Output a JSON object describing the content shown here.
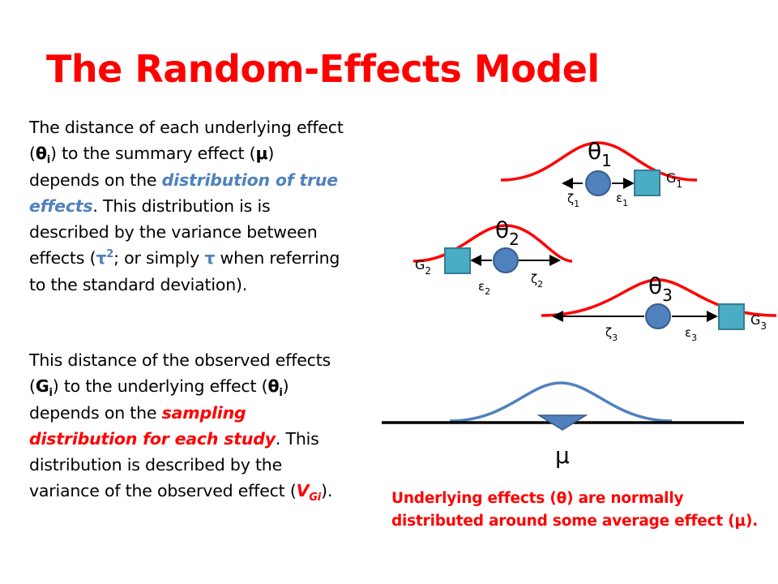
{
  "title": "The Random-Effects Model",
  "para1": {
    "t1": "The distance of each underlying effect (",
    "theta": "θ",
    "i1": "i",
    "t2": ") to the summary effect (",
    "mu": "μ",
    "t3": ") depends on the ",
    "em": "distribution of true effects",
    "t4": ". This distribution is is described by the variance between effects (",
    "tau2_base": "τ",
    "tau2_exp": "2",
    "t5": "; or simply ",
    "tau": "τ",
    "t6": " when referring to the standard deviation)."
  },
  "para2": {
    "t1": "This distance of the observed effects (",
    "g": "G",
    "i1": "i",
    "t2": ") to the underlying effect (",
    "theta": "θ",
    "i2": "i",
    "t3": ") depends on the ",
    "em": "sampling distribution for each study",
    "t4": ". This distribution is described by the variance of the observed effect (",
    "v": "V",
    "v_sub": "Gi",
    "t5": ")."
  },
  "diagram": {
    "theta1": "θ",
    "theta1_sub": "1",
    "theta2": "θ",
    "theta2_sub": "2",
    "theta3": "θ",
    "theta3_sub": "3",
    "g1": "G",
    "g1_sub": "1",
    "g2": "G",
    "g2_sub": "2",
    "g3": "G",
    "g3_sub": "3",
    "zeta1": "ζ",
    "zeta1_sub": "1",
    "zeta2": "ζ",
    "zeta2_sub": "2",
    "zeta3": "ζ",
    "zeta3_sub": "3",
    "eps1": "ε",
    "eps1_sub": "1",
    "eps2": "ε",
    "eps2_sub": "2",
    "eps3": "ε",
    "eps3_sub": "3",
    "mu": "μ"
  },
  "caption": {
    "line1": "Underlying effects (θ) are normally",
    "line2": "distributed around some average effect (μ)."
  },
  "colors": {
    "title": "#ff0000",
    "emphasis_blue": "#4f81bd",
    "curve_red": "#ff0000",
    "curve_blue": "#4f81bd",
    "circle_fill": "#4f81bd",
    "circle_stroke": "#385d8a",
    "square_fill": "#4bacc6",
    "square_stroke": "#357d91"
  },
  "icons": {
    "theta_marker": "circle",
    "observed_marker": "square",
    "mean_marker": "downward-triangle"
  }
}
